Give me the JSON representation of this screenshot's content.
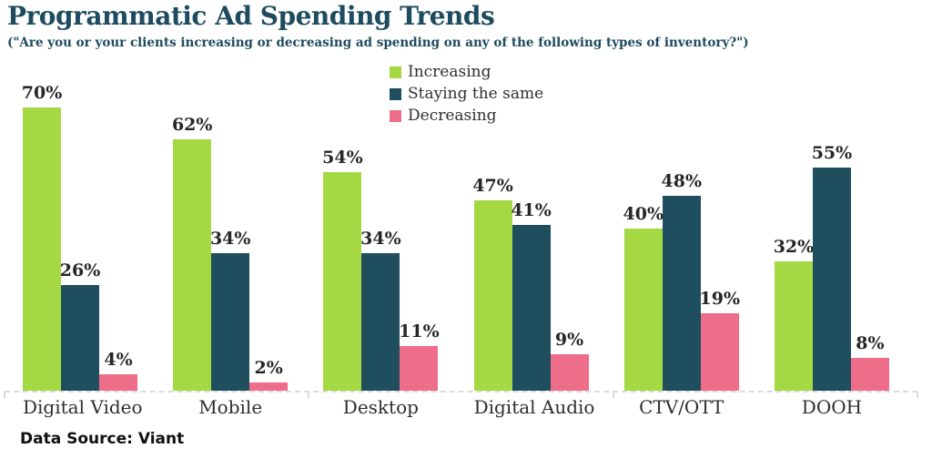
{
  "header": {
    "title": "Programmatic Ad Spending Trends",
    "subtitle": "(\"Are you or your clients increasing or decreasing ad spending on any of the following types of inventory?\")"
  },
  "chart_data": {
    "type": "bar",
    "title": "Programmatic Ad Spending Trends",
    "subtitle": "(\"Are you or your clients increasing or decreasing ad spending on any of the following types of inventory?\")",
    "categories": [
      "Digital Video",
      "Mobile",
      "Desktop",
      "Digital Audio",
      "CTV/OTT",
      "DOOH"
    ],
    "series": [
      {
        "name": "Increasing",
        "color": "#A4D944",
        "values": [
          70,
          62,
          54,
          47,
          40,
          32
        ]
      },
      {
        "name": "Staying the same",
        "color": "#1F4E5F",
        "values": [
          26,
          34,
          34,
          41,
          48,
          55
        ]
      },
      {
        "name": "Decreasing",
        "color": "#EE6D89",
        "values": [
          4,
          2,
          11,
          9,
          19,
          8
        ]
      }
    ],
    "value_suffix": "%",
    "xlabel": "",
    "ylabel": "",
    "ylim": [
      0,
      70
    ],
    "grid": false,
    "legend_position": "top-center",
    "axis_style": "dashed-baseline"
  },
  "footer": {
    "data_source": "Data Source: Viant"
  },
  "colors": {
    "title_text": "#1D4B5F",
    "value_label_text": "#262626",
    "category_label_text": "#2E2E2E",
    "axis_line": "#DBDBDB",
    "background": "#FFFFFF"
  }
}
